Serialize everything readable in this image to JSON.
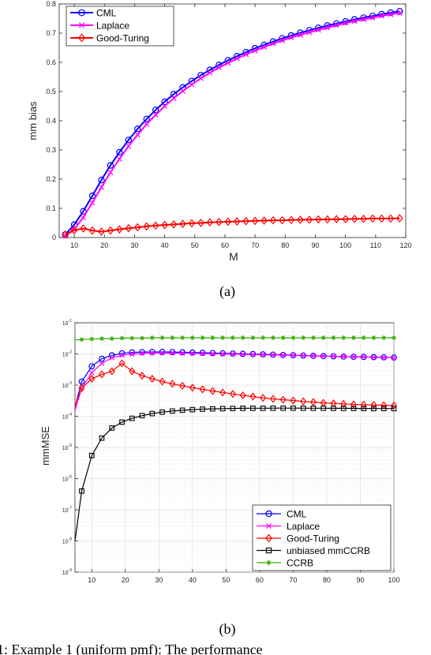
{
  "figure": {
    "caption_a": "(a)",
    "caption_b": "(b)",
    "bottom_caption": "1: Example 1 (uniform pmf): The performance"
  },
  "chart_data": [
    {
      "type": "line",
      "xlabel": "M",
      "ylabel": "mm bias",
      "xlim": [
        5,
        120
      ],
      "ylim": [
        0,
        0.8
      ],
      "xticks": [
        10,
        20,
        30,
        40,
        50,
        60,
        70,
        80,
        90,
        100,
        110,
        120
      ],
      "yticks": [
        0,
        0.1,
        0.2,
        0.3,
        0.4,
        0.5,
        0.6,
        0.7,
        0.8
      ],
      "grid": false,
      "legend_position": "top-left",
      "series": [
        {
          "name": "CML",
          "color": "#0000ff",
          "marker": "circle",
          "x": [
            7,
            10,
            13,
            16,
            19,
            22,
            25,
            28,
            31,
            34,
            37,
            40,
            43,
            46,
            49,
            52,
            55,
            58,
            61,
            64,
            67,
            70,
            73,
            76,
            79,
            82,
            85,
            88,
            91,
            94,
            97,
            100,
            103,
            106,
            109,
            112,
            115,
            118
          ],
          "y": [
            0.01,
            0.044,
            0.09,
            0.143,
            0.197,
            0.247,
            0.292,
            0.334,
            0.372,
            0.406,
            0.437,
            0.465,
            0.491,
            0.514,
            0.536,
            0.556,
            0.574,
            0.591,
            0.607,
            0.621,
            0.635,
            0.648,
            0.66,
            0.671,
            0.682,
            0.692,
            0.701,
            0.71,
            0.718,
            0.726,
            0.733,
            0.74,
            0.747,
            0.753,
            0.759,
            0.765,
            0.77,
            0.775
          ]
        },
        {
          "name": "Laplace",
          "color": "#ff00ff",
          "marker": "x",
          "x": [
            7,
            10,
            13,
            16,
            19,
            22,
            25,
            28,
            31,
            34,
            37,
            40,
            43,
            46,
            49,
            52,
            55,
            58,
            61,
            64,
            67,
            70,
            73,
            76,
            79,
            82,
            85,
            88,
            91,
            94,
            97,
            100,
            103,
            106,
            109,
            112,
            115,
            118
          ],
          "y": [
            0.005,
            0.028,
            0.069,
            0.119,
            0.172,
            0.223,
            0.269,
            0.313,
            0.352,
            0.388,
            0.42,
            0.45,
            0.477,
            0.501,
            0.524,
            0.545,
            0.564,
            0.582,
            0.598,
            0.613,
            0.627,
            0.64,
            0.652,
            0.664,
            0.675,
            0.685,
            0.694,
            0.703,
            0.711,
            0.719,
            0.727,
            0.734,
            0.741,
            0.747,
            0.753,
            0.759,
            0.764,
            0.769
          ]
        },
        {
          "name": "Good-Turing",
          "color": "#ff0000",
          "marker": "diamond",
          "x": [
            7,
            10,
            13,
            16,
            19,
            22,
            25,
            28,
            31,
            34,
            37,
            40,
            43,
            46,
            49,
            52,
            55,
            58,
            61,
            64,
            67,
            70,
            73,
            76,
            79,
            82,
            85,
            88,
            91,
            94,
            97,
            100,
            103,
            106,
            109,
            112,
            115,
            118
          ],
          "y": [
            0.01,
            0.025,
            0.031,
            0.024,
            0.02,
            0.024,
            0.028,
            0.032,
            0.035,
            0.038,
            0.041,
            0.043,
            0.045,
            0.047,
            0.049,
            0.05,
            0.052,
            0.053,
            0.054,
            0.055,
            0.056,
            0.057,
            0.058,
            0.059,
            0.059,
            0.06,
            0.061,
            0.061,
            0.062,
            0.062,
            0.063,
            0.063,
            0.064,
            0.064,
            0.065,
            0.065,
            0.065,
            0.066
          ]
        }
      ]
    },
    {
      "type": "line",
      "xlabel": "",
      "ylabel": "mmMSE",
      "xlim": [
        5,
        100
      ],
      "ylim": [
        1e-09,
        0.1
      ],
      "yscale": "log",
      "xticks": [
        10,
        20,
        30,
        40,
        50,
        60,
        70,
        80,
        90,
        100
      ],
      "ytick_labels": [
        "10-9",
        "10-8",
        "10-7",
        "10-6",
        "10-5",
        "10-4",
        "10-3",
        "10-2",
        "10-1"
      ],
      "grid": true,
      "legend_position": "bottom-right",
      "series": [
        {
          "name": "CML",
          "color": "#0000ff",
          "marker": "circle",
          "x": [
            5,
            7,
            10,
            13,
            16,
            19,
            22,
            25,
            28,
            31,
            34,
            37,
            40,
            43,
            46,
            49,
            52,
            55,
            58,
            61,
            64,
            67,
            70,
            73,
            76,
            79,
            82,
            85,
            88,
            91,
            94,
            97,
            100
          ],
          "y": [
            0.0002,
            0.0013,
            0.004,
            0.007,
            0.009,
            0.0105,
            0.0112,
            0.0115,
            0.0116,
            0.0116,
            0.0115,
            0.0113,
            0.0111,
            0.0109,
            0.0107,
            0.0105,
            0.0103,
            0.0101,
            0.0099,
            0.0097,
            0.0095,
            0.0093,
            0.0091,
            0.0089,
            0.0087,
            0.0085,
            0.0084,
            0.0082,
            0.0081,
            0.008,
            0.0079,
            0.0078,
            0.0077
          ]
        },
        {
          "name": "Laplace",
          "color": "#ff00ff",
          "marker": "x",
          "x": [
            5,
            7,
            10,
            13,
            16,
            19,
            22,
            25,
            28,
            31,
            34,
            37,
            40,
            43,
            46,
            49,
            52,
            55,
            58,
            61,
            64,
            67,
            70,
            73,
            76,
            79,
            82,
            85,
            88,
            91,
            94,
            97,
            100
          ],
          "y": [
            0.00015,
            0.0008,
            0.0025,
            0.005,
            0.0075,
            0.009,
            0.0098,
            0.0103,
            0.0105,
            0.0106,
            0.0106,
            0.0105,
            0.0104,
            0.0103,
            0.0101,
            0.01,
            0.0099,
            0.0097,
            0.0096,
            0.0094,
            0.0093,
            0.0091,
            0.009,
            0.0088,
            0.0087,
            0.0085,
            0.0084,
            0.0082,
            0.0081,
            0.008,
            0.0078,
            0.0077,
            0.0076
          ]
        },
        {
          "name": "Good-Turing",
          "color": "#ff0000",
          "marker": "diamond",
          "x": [
            5,
            7,
            10,
            13,
            16,
            19,
            22,
            25,
            28,
            31,
            34,
            37,
            40,
            43,
            46,
            49,
            52,
            55,
            58,
            61,
            64,
            67,
            70,
            73,
            76,
            79,
            82,
            85,
            88,
            91,
            94,
            97,
            100
          ],
          "y": [
            0.00022,
            0.0008,
            0.0016,
            0.0022,
            0.0028,
            0.005,
            0.0028,
            0.002,
            0.0016,
            0.0013,
            0.0011,
            0.00095,
            0.00083,
            0.00073,
            0.00065,
            0.00058,
            0.00052,
            0.00047,
            0.00043,
            0.00039,
            0.00036,
            0.00034,
            0.00032,
            0.0003,
            0.000285,
            0.00027,
            0.00026,
            0.00025,
            0.00024,
            0.000235,
            0.00023,
            0.000225,
            0.00022
          ]
        },
        {
          "name": "unbiased mmCCRB",
          "color": "#000000",
          "marker": "square",
          "x": [
            5,
            7,
            10,
            13,
            16,
            19,
            22,
            25,
            28,
            31,
            34,
            37,
            40,
            43,
            46,
            49,
            52,
            55,
            58,
            61,
            64,
            67,
            70,
            73,
            76,
            79,
            82,
            85,
            88,
            91,
            94,
            97,
            100
          ],
          "y": [
            1e-08,
            4e-07,
            5.5e-06,
            2e-05,
            4.2e-05,
            6.5e-05,
            8.6e-05,
            0.000105,
            0.000122,
            0.000136,
            0.000147,
            0.000156,
            0.000163,
            0.000169,
            0.000173,
            0.000176,
            0.000178,
            0.00018,
            0.000181,
            0.000181,
            0.000182,
            0.000182,
            0.000182,
            0.000182,
            0.000181,
            0.000181,
            0.00018,
            0.00018,
            0.000179,
            0.000178,
            0.000177,
            0.000177,
            0.000176
          ]
        },
        {
          "name": "CCRB",
          "color": "#33aa00",
          "marker": "star",
          "x": [
            5,
            7,
            10,
            13,
            16,
            19,
            22,
            25,
            28,
            31,
            34,
            37,
            40,
            43,
            46,
            49,
            52,
            55,
            58,
            61,
            64,
            67,
            70,
            73,
            76,
            79,
            82,
            85,
            88,
            91,
            94,
            97,
            100
          ],
          "y": [
            0.028,
            0.029,
            0.03,
            0.031,
            0.031,
            0.032,
            0.032,
            0.032,
            0.033,
            0.033,
            0.033,
            0.033,
            0.033,
            0.033,
            0.033,
            0.033,
            0.033,
            0.033,
            0.033,
            0.033,
            0.033,
            0.033,
            0.033,
            0.033,
            0.033,
            0.033,
            0.033,
            0.033,
            0.033,
            0.033,
            0.033,
            0.033,
            0.033
          ]
        }
      ]
    }
  ]
}
